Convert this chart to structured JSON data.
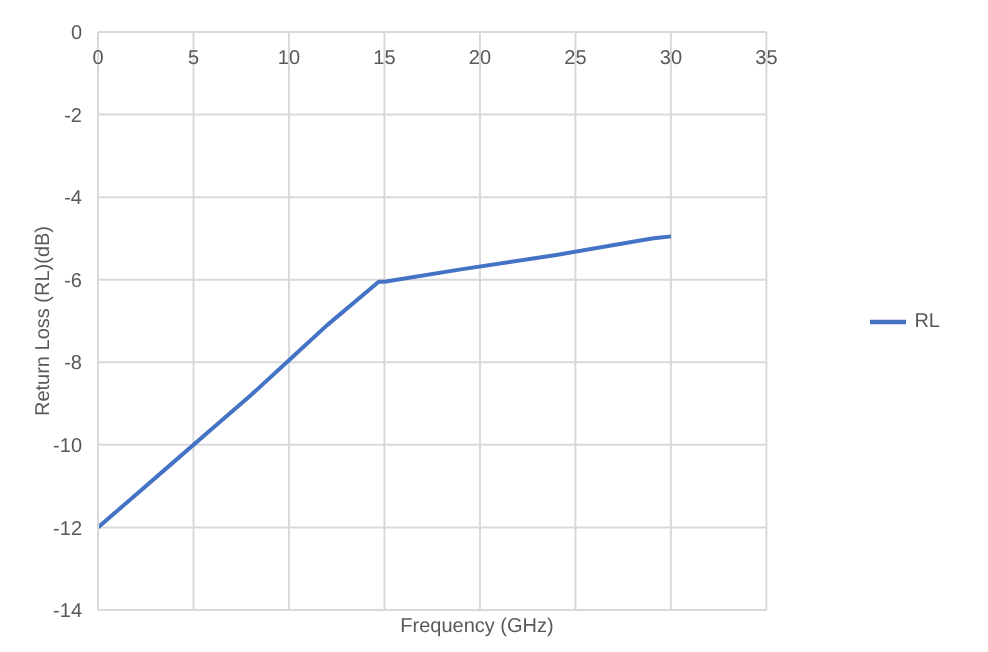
{
  "chart_data": {
    "type": "line",
    "xlabel": "Frequency (GHz)",
    "ylabel": "Return Loss (RL)(dB)",
    "x": [
      0,
      2,
      4,
      6,
      8,
      10,
      12,
      14.7,
      15,
      19,
      24,
      29,
      30
    ],
    "series": [
      {
        "name": "RL",
        "color": "#4472c4",
        "values": [
          -12,
          -11.2,
          -10.4,
          -9.6,
          -8.8,
          -7.95,
          -7.1,
          -6.05,
          -6.05,
          -5.75,
          -5.4,
          -5.0,
          -4.95
        ]
      }
    ],
    "xlim": [
      0,
      35
    ],
    "xticks": [
      0,
      5,
      10,
      15,
      20,
      25,
      30,
      35
    ],
    "ylim": [
      -14,
      0
    ],
    "yticks": [
      0,
      -2,
      -4,
      -6,
      -8,
      -10,
      -12,
      -14
    ],
    "grid": true,
    "legend": "right",
    "marker": "none",
    "line_style": "solid"
  }
}
